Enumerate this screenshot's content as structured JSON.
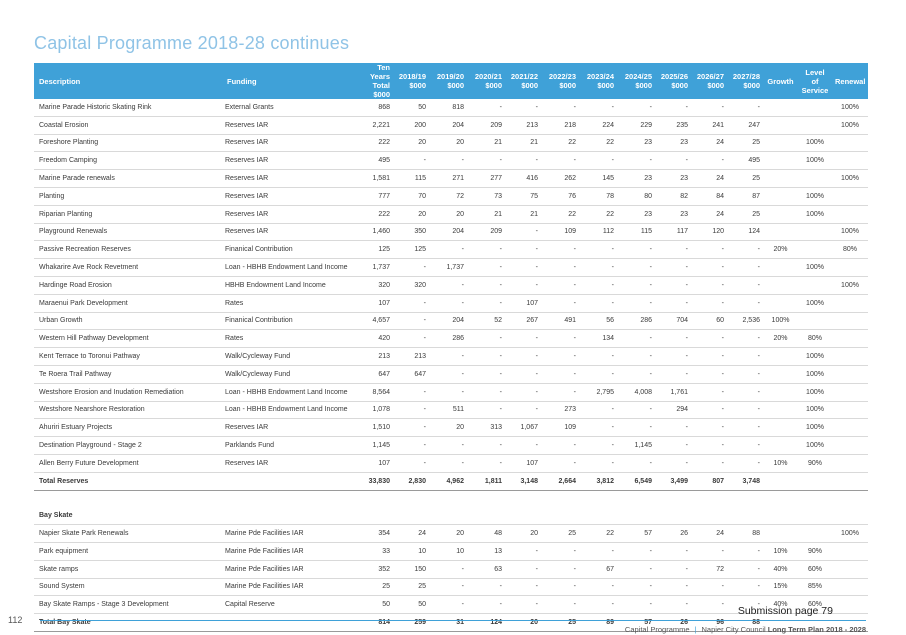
{
  "title": "Capital Programme 2018-28 continues",
  "headers": {
    "description": "Description",
    "funding": "Funding",
    "total": "Ten Years Total $000",
    "y1": "2018/19 $000",
    "y2": "2019/20 $000",
    "y3": "2020/21 $000",
    "y4": "2021/22 $000",
    "y5": "2022/23 $000",
    "y6": "2023/24 $000",
    "y7": "2024/25 $000",
    "y8": "2025/26 $000",
    "y9": "2026/27 $000",
    "y10": "2027/28 $000",
    "growth": "Growth",
    "level": "Level of Service",
    "renewal": "Renewal"
  },
  "rows": [
    [
      "Marine Parade Historic Skating Rink",
      "External Grants",
      "868",
      "50",
      "818",
      "-",
      "-",
      "-",
      "-",
      "-",
      "-",
      "-",
      "-",
      "",
      "",
      "100%"
    ],
    [
      "Coastal Erosion",
      "Reserves IAR",
      "2,221",
      "200",
      "204",
      "209",
      "213",
      "218",
      "224",
      "229",
      "235",
      "241",
      "247",
      "",
      "",
      "100%"
    ],
    [
      "Foreshore Planting",
      "Reserves IAR",
      "222",
      "20",
      "20",
      "21",
      "21",
      "22",
      "22",
      "23",
      "23",
      "24",
      "25",
      "",
      "100%",
      ""
    ],
    [
      "Freedom Camping",
      "Reserves IAR",
      "495",
      "-",
      "-",
      "-",
      "-",
      "-",
      "-",
      "-",
      "-",
      "-",
      "495",
      "",
      "100%",
      ""
    ],
    [
      "Marine Parade renewals",
      "Reserves IAR",
      "1,581",
      "115",
      "271",
      "277",
      "416",
      "262",
      "145",
      "23",
      "23",
      "24",
      "25",
      "",
      "",
      "100%"
    ],
    [
      "Planting",
      "Reserves IAR",
      "777",
      "70",
      "72",
      "73",
      "75",
      "76",
      "78",
      "80",
      "82",
      "84",
      "87",
      "",
      "100%",
      ""
    ],
    [
      "Riparian Planting",
      "Reserves IAR",
      "222",
      "20",
      "20",
      "21",
      "21",
      "22",
      "22",
      "23",
      "23",
      "24",
      "25",
      "",
      "100%",
      ""
    ],
    [
      "Playground Renewals",
      "Reserves IAR",
      "1,460",
      "350",
      "204",
      "209",
      "-",
      "109",
      "112",
      "115",
      "117",
      "120",
      "124",
      "",
      "",
      "100%"
    ],
    [
      "Passive Recreation Reserves",
      "Finanical Contribution",
      "125",
      "125",
      "-",
      "-",
      "-",
      "-",
      "-",
      "-",
      "-",
      "-",
      "-",
      "20%",
      "",
      "80%"
    ],
    [
      "Whakarire Ave Rock Revetment",
      "Loan - HBHB Endowment Land Income",
      "1,737",
      "-",
      "1,737",
      "-",
      "-",
      "-",
      "-",
      "-",
      "-",
      "-",
      "-",
      "",
      "100%",
      ""
    ],
    [
      "Hardinge Road Erosion",
      "HBHB Endowment Land Income",
      "320",
      "320",
      "-",
      "-",
      "-",
      "-",
      "-",
      "-",
      "-",
      "-",
      "-",
      "",
      "",
      "100%"
    ],
    [
      "Maraenui Park Development",
      "Rates",
      "107",
      "-",
      "-",
      "-",
      "107",
      "-",
      "-",
      "-",
      "-",
      "-",
      "-",
      "",
      "100%",
      ""
    ],
    [
      "Urban Growth",
      "Finanical Contribution",
      "4,657",
      "-",
      "204",
      "52",
      "267",
      "491",
      "56",
      "286",
      "704",
      "60",
      "2,536",
      "100%",
      "",
      ""
    ],
    [
      "Western Hill Pathway Development",
      "Rates",
      "420",
      "-",
      "286",
      "-",
      "-",
      "-",
      "134",
      "-",
      "-",
      "-",
      "-",
      "20%",
      "80%",
      ""
    ],
    [
      "Kent Terrace to Toronui Pathway",
      "Walk/Cycleway Fund",
      "213",
      "213",
      "-",
      "-",
      "-",
      "-",
      "-",
      "-",
      "-",
      "-",
      "-",
      "",
      "100%",
      ""
    ],
    [
      "Te Roera Trail Pathway",
      "Walk/Cycleway Fund",
      "647",
      "647",
      "-",
      "-",
      "-",
      "-",
      "-",
      "-",
      "-",
      "-",
      "-",
      "",
      "100%",
      ""
    ],
    [
      "Westshore Erosion and Inudation Remediation",
      "Loan - HBHB Endowment Land Income",
      "8,564",
      "-",
      "-",
      "-",
      "-",
      "-",
      "2,795",
      "4,008",
      "1,761",
      "-",
      "-",
      "",
      "100%",
      ""
    ],
    [
      "Westshore Nearshore Restoration",
      "Loan - HBHB Endowment Land Income",
      "1,078",
      "-",
      "511",
      "-",
      "-",
      "273",
      "-",
      "-",
      "294",
      "-",
      "-",
      "",
      "100%",
      ""
    ],
    [
      "Ahuriri Estuary Projects",
      "Reserves IAR",
      "1,510",
      "-",
      "20",
      "313",
      "1,067",
      "109",
      "-",
      "-",
      "-",
      "-",
      "-",
      "",
      "100%",
      ""
    ],
    [
      "Destination Playground  - Stage 2",
      "Parklands Fund",
      "1,145",
      "-",
      "-",
      "-",
      "-",
      "-",
      "-",
      "1,145",
      "-",
      "-",
      "-",
      "",
      "100%",
      ""
    ],
    [
      "Allen Berry Future Development",
      "Reserves IAR",
      "107",
      "-",
      "-",
      "-",
      "107",
      "-",
      "-",
      "-",
      "-",
      "-",
      "-",
      "10%",
      "90%",
      ""
    ]
  ],
  "total_reserves": [
    "Total Reserves",
    "",
    "33,830",
    "2,830",
    "4,962",
    "1,811",
    "3,148",
    "2,664",
    "3,812",
    "6,549",
    "3,499",
    "807",
    "3,748",
    "",
    "",
    ""
  ],
  "section_title": "Bay Skate",
  "bay_rows": [
    [
      "Napier Skate Park Renewals",
      "Marine Pde Facilities IAR",
      "354",
      "24",
      "20",
      "48",
      "20",
      "25",
      "22",
      "57",
      "26",
      "24",
      "88",
      "",
      "",
      "100%"
    ],
    [
      "Park equipment",
      "Marine Pde Facilities IAR",
      "33",
      "10",
      "10",
      "13",
      "-",
      "-",
      "-",
      "-",
      "-",
      "-",
      "-",
      "10%",
      "90%",
      ""
    ],
    [
      "Skate ramps",
      "Marine Pde Facilities IAR",
      "352",
      "150",
      "-",
      "63",
      "-",
      "-",
      "67",
      "-",
      "-",
      "72",
      "-",
      "40%",
      "60%",
      ""
    ],
    [
      "Sound System",
      "Marine Pde Facilities IAR",
      "25",
      "25",
      "-",
      "-",
      "-",
      "-",
      "-",
      "-",
      "-",
      "-",
      "-",
      "15%",
      "85%",
      ""
    ],
    [
      "Bay Skate Ramps - Stage 3 Development",
      "Capital Reserve",
      "50",
      "50",
      "-",
      "-",
      "-",
      "-",
      "-",
      "-",
      "-",
      "-",
      "-",
      "40%",
      "60%",
      ""
    ]
  ],
  "total_bay": [
    "Total Bay Skate",
    "",
    "814",
    "259",
    "31",
    "124",
    "20",
    "25",
    "89",
    "57",
    "26",
    "96",
    "88",
    "",
    "",
    ""
  ],
  "submission": "Submission page 79",
  "page_number": "112",
  "footer": {
    "section": "Capital Programme",
    "doc_prefix": "Napier City Council ",
    "doc_bold": "Long Term Plan 2018 - 2028"
  }
}
